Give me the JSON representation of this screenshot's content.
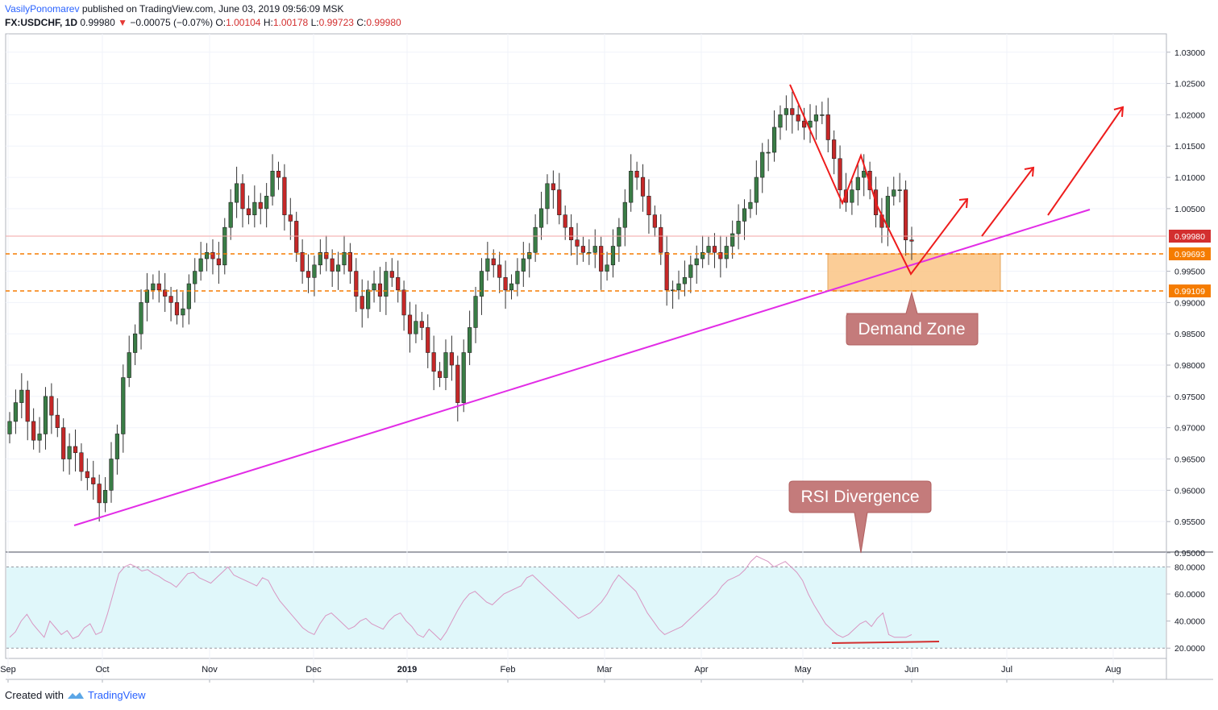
{
  "header": {
    "author": "VasilyPonomarev",
    "published": "published on TradingView.com, June 03, 2019 09:56:09 MSK",
    "symbol": "FX:USDCHF, 1D",
    "last": "0.99980",
    "change": "−0.00075 (−0.07%)",
    "o_label": "O:",
    "o_value": "1.00104",
    "h_label": "H:",
    "h_value": "1.00178",
    "l_label": "L:",
    "l_value": "0.99723",
    "c_label": "C:",
    "c_value": "0.99980"
  },
  "footer": {
    "created": "Created with",
    "brand": "TradingView"
  },
  "annotations": {
    "demand_zone": "Demand Zone",
    "rsi_divergence": "RSI Divergence"
  },
  "price_tags": {
    "last": "0.99980",
    "zone_top": "0.99693",
    "zone_bottom": "0.99109"
  },
  "colors": {
    "bull": "#3a7d46",
    "bear": "#c62828",
    "trendline": "#e22ce6",
    "arrows": "#ee1c1c",
    "zone_fill": "#fbc88c",
    "dashed": "#f57c00",
    "rsi_band": "#e0f7fa",
    "rsi_line": "#d896c2",
    "callout": "#c47b7b"
  },
  "chart_data": [
    {
      "type": "candlestick",
      "title": "FX:USDCHF, 1D",
      "y_axis_ticks": [
        "1.03000",
        "1.02500",
        "1.02000",
        "1.01500",
        "1.01000",
        "1.00500",
        "0.99500",
        "0.99000",
        "0.98500",
        "0.98000",
        "0.97500",
        "0.97000",
        "0.96500",
        "0.96000",
        "0.95500",
        "0.95000"
      ],
      "x_axis_labels": [
        "Sep",
        "Oct",
        "Nov",
        "Dec",
        "2019",
        "Feb",
        "Mar",
        "Apr",
        "May",
        "Jun",
        "Jul",
        "Aug"
      ],
      "ylim": [
        0.95,
        1.031
      ],
      "closes": [
        0.971,
        0.974,
        0.976,
        0.971,
        0.968,
        0.969,
        0.975,
        0.972,
        0.97,
        0.965,
        0.967,
        0.966,
        0.963,
        0.962,
        0.961,
        0.958,
        0.96,
        0.965,
        0.969,
        0.978,
        0.982,
        0.985,
        0.99,
        0.992,
        0.993,
        0.992,
        0.991,
        0.99,
        0.988,
        0.989,
        0.993,
        0.995,
        0.997,
        0.998,
        0.997,
        0.996,
        1.002,
        1.006,
        1.009,
        1.005,
        1.004,
        1.006,
        1.005,
        1.007,
        1.011,
        1.01,
        1.004,
        1.003,
        0.998,
        0.995,
        0.994,
        0.996,
        0.998,
        0.997,
        0.995,
        0.996,
        0.998,
        0.995,
        0.991,
        0.989,
        0.992,
        0.993,
        0.991,
        0.995,
        0.994,
        0.992,
        0.988,
        0.985,
        0.987,
        0.986,
        0.982,
        0.979,
        0.978,
        0.982,
        0.98,
        0.974,
        0.982,
        0.986,
        0.991,
        0.995,
        0.997,
        0.996,
        0.994,
        0.992,
        0.993,
        0.995,
        0.997,
        0.998,
        1.002,
        1.005,
        1.009,
        1.008,
        1.004,
        1.002,
        1.0,
        0.999,
        0.998,
        0.998,
        0.999,
        0.995,
        0.996,
        0.999,
        1.002,
        1.006,
        1.011,
        1.01,
        1.007,
        1.004,
        1.002,
        0.998,
        0.992,
        0.992,
        0.993,
        0.994,
        0.996,
        0.997,
        0.998,
        0.999,
        0.998,
        0.997,
        0.999,
        1.001,
        1.003,
        1.005,
        1.006,
        1.01,
        1.014,
        1.014,
        1.018,
        1.02,
        1.021,
        1.02,
        1.019,
        1.018,
        1.019,
        1.02,
        1.02,
        1.016,
        1.013,
        1.008,
        1.006,
        1.008,
        1.01,
        1.011,
        1.008,
        1.004,
        1.002,
        1.007,
        1.008,
        1.008,
        1.0,
        0.9998
      ]
    },
    {
      "type": "line",
      "title": "RSI",
      "y_axis_ticks": [
        "80.0000",
        "60.0000",
        "40.0000",
        "20.0000"
      ],
      "ylim": [
        13,
        88
      ],
      "band": [
        20,
        80
      ],
      "values": [
        28,
        32,
        40,
        45,
        38,
        33,
        28,
        40,
        35,
        30,
        33,
        27,
        29,
        35,
        38,
        30,
        32,
        45,
        60,
        75,
        80,
        82,
        80,
        77,
        78,
        75,
        73,
        70,
        68,
        65,
        70,
        75,
        76,
        72,
        70,
        68,
        72,
        76,
        80,
        74,
        72,
        70,
        68,
        66,
        72,
        70,
        62,
        55,
        50,
        45,
        40,
        35,
        32,
        30,
        38,
        44,
        46,
        42,
        38,
        34,
        36,
        40,
        42,
        38,
        36,
        34,
        40,
        44,
        46,
        40,
        36,
        30,
        28,
        34,
        30,
        26,
        32,
        40,
        48,
        55,
        60,
        62,
        58,
        54,
        52,
        56,
        60,
        62,
        64,
        66,
        72,
        74,
        70,
        66,
        62,
        58,
        54,
        50,
        46,
        42,
        44,
        46,
        50,
        54,
        60,
        68,
        74,
        70,
        66,
        62,
        54,
        46,
        40,
        34,
        30,
        32,
        34,
        36,
        40,
        44,
        48,
        52,
        56,
        60,
        66,
        70,
        72,
        74,
        78,
        84,
        88,
        86,
        84,
        80,
        82,
        84,
        80,
        76,
        70,
        60,
        52,
        45,
        38,
        34,
        30,
        28,
        30,
        34,
        38,
        40,
        36,
        42,
        46,
        30,
        28,
        28,
        28,
        30
      ]
    }
  ]
}
